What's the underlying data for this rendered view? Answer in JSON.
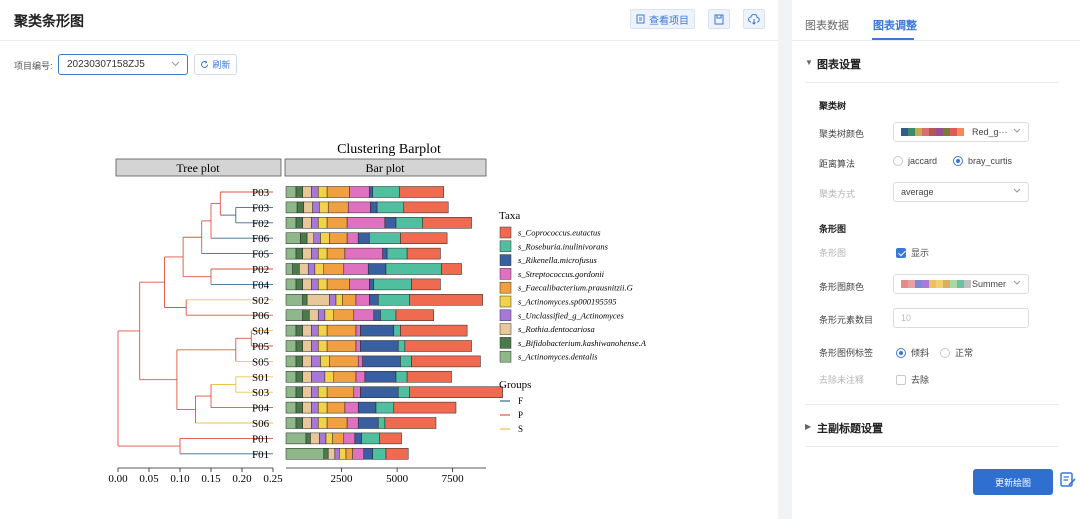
{
  "left": {
    "title": "聚类条形图",
    "view_project_label": "查看项目",
    "project_label": "项目编号:",
    "project_value": "20230307158ZJ5",
    "refresh_label": "刷新"
  },
  "right": {
    "tabs": [
      {
        "label": "图表数据",
        "active": false
      },
      {
        "label": "图表调整",
        "active": true
      }
    ],
    "section_chart_settings": "图表设置",
    "subsection_tree": "聚类树",
    "tree_color_label": "聚类树颜色",
    "tree_color_value": "Red_g···",
    "tree_color_swatches": [
      "#2e5f8a",
      "#3e8a6a",
      "#c8a850",
      "#d87070",
      "#b35757",
      "#9b4f8c",
      "#7a7a3a",
      "#e05a5a",
      "#f08a5a"
    ],
    "distance_label": "距离算法",
    "distance_options": [
      "jaccard",
      "bray_curtis"
    ],
    "distance_selected": "bray_curtis",
    "cluster_method_label": "聚类方式",
    "cluster_method_value": "average",
    "subsection_bar": "条形图",
    "bar_show_label": "条形图",
    "bar_show_text": "显示",
    "bar_show_checked": true,
    "bar_color_label": "条形图颜色",
    "bar_color_value": "Summer",
    "bar_color_swatches": [
      "#e88a8a",
      "#e8a0a0",
      "#7a8ad8",
      "#a87ad8",
      "#f0c060",
      "#f0d070",
      "#d8b060",
      "#a8d8a8",
      "#70c0a0",
      "#c0c0c0"
    ],
    "bar_elements_label": "条形元素数目",
    "bar_elements_placeholder": "10",
    "legend_label": "条形图例标签",
    "legend_options": [
      "倾斜",
      "正常"
    ],
    "legend_selected": "倾斜",
    "remove_unannotated_label": "去除未注释",
    "remove_unannotated_text": "去除",
    "remove_unannotated_checked": false,
    "section_titles": "主副标题设置",
    "update_button": "更新绘图"
  },
  "colors": {
    "accent": "#3a78d8",
    "group_F": "#3a6a8a",
    "group_P": "#e0533e",
    "group_S": "#f0c24a"
  },
  "chart_data": {
    "type": "bar",
    "title": "Clustering Barplot",
    "tree_panel_label": "Tree plot",
    "bar_panel_label": "Bar plot",
    "samples": [
      "P03",
      "F03",
      "F02",
      "F06",
      "F05",
      "P02",
      "F04",
      "S02",
      "P06",
      "S04",
      "P05",
      "S05",
      "S01",
      "S03",
      "P04",
      "S06",
      "P01",
      "F01"
    ],
    "sample_groups": [
      "P",
      "F",
      "F",
      "F",
      "F",
      "P",
      "F",
      "S",
      "P",
      "S",
      "P",
      "S",
      "S",
      "S",
      "P",
      "S",
      "P",
      "F"
    ],
    "tree_axis_ticks": [
      "0.00",
      "0.05",
      "0.10",
      "0.15",
      "0.20",
      "0.25"
    ],
    "tree_xlim": [
      0,
      0.25
    ],
    "bar_axis_ticks": [
      "2500",
      "5000",
      "7500"
    ],
    "bar_xlim": [
      0,
      9000
    ],
    "series": [
      {
        "name": "s_Actinomyces.dentalis",
        "color": "#8fb88a",
        "values": [
          450,
          500,
          450,
          650,
          450,
          300,
          450,
          750,
          750,
          450,
          450,
          450,
          450,
          450,
          450,
          450,
          900,
          1700
        ]
      },
      {
        "name": "s_Bifidobacterium.kashiwanohense.A",
        "color": "#4a7a4a",
        "values": [
          300,
          300,
          300,
          300,
          300,
          300,
          300,
          200,
          300,
          300,
          300,
          300,
          300,
          300,
          300,
          300,
          200,
          200
        ]
      },
      {
        "name": "s_Rothia.dentocariosa",
        "color": "#e8c89a",
        "values": [
          400,
          400,
          400,
          300,
          400,
          400,
          400,
          1000,
          400,
          400,
          400,
          400,
          400,
          400,
          400,
          400,
          400,
          300
        ]
      },
      {
        "name": "s_Unclassified_g_Actinomyces",
        "color": "#a878d8",
        "values": [
          300,
          300,
          300,
          300,
          300,
          300,
          300,
          300,
          300,
          300,
          300,
          400,
          600,
          300,
          300,
          300,
          300,
          200
        ]
      },
      {
        "name": "s_Actinomyces.sp000195595",
        "color": "#f2d24a",
        "values": [
          400,
          400,
          400,
          400,
          400,
          400,
          400,
          300,
          400,
          400,
          400,
          400,
          400,
          400,
          400,
          400,
          300,
          300
        ]
      },
      {
        "name": "s_Faecalibacterium.prausnitzii.G",
        "color": "#f0a040",
        "values": [
          1000,
          900,
          900,
          800,
          800,
          900,
          1000,
          600,
          900,
          1300,
          1300,
          1300,
          1000,
          1200,
          800,
          900,
          500,
          300
        ]
      },
      {
        "name": "s_Streptococcus.gordonii",
        "color": "#e070c0",
        "values": [
          900,
          1000,
          1700,
          500,
          1700,
          1100,
          900,
          600,
          900,
          200,
          200,
          200,
          400,
          300,
          600,
          500,
          500,
          500
        ]
      },
      {
        "name": "s_Rikenella.microfusus",
        "color": "#3a5fa0",
        "values": [
          150,
          300,
          500,
          500,
          200,
          800,
          200,
          400,
          300,
          1500,
          1700,
          1700,
          1400,
          1700,
          800,
          900,
          300,
          400
        ]
      },
      {
        "name": "s_Roseburia.inulinivorans",
        "color": "#4fbfa0",
        "values": [
          1200,
          1200,
          1200,
          1400,
          900,
          2500,
          1700,
          1400,
          700,
          300,
          300,
          500,
          500,
          500,
          800,
          300,
          800,
          600
        ]
      },
      {
        "name": "s_Coprococcus.eutactus",
        "color": "#f06a50",
        "values": [
          2000,
          2000,
          2200,
          2100,
          1500,
          900,
          1300,
          3300,
          1700,
          3000,
          3000,
          3100,
          2000,
          4200,
          2800,
          2300,
          1000,
          1000
        ]
      }
    ],
    "taxa_legend_title": "Taxa",
    "groups_legend_title": "Groups",
    "groups": [
      "F",
      "P",
      "S"
    ]
  }
}
